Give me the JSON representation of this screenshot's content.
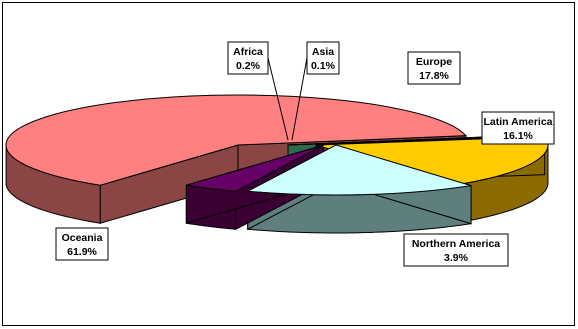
{
  "chart_data": {
    "type": "pie",
    "style": "3d-exploded",
    "title": "",
    "slices": [
      {
        "name": "Oceania",
        "value": 61.9,
        "label": "61.9%",
        "color": "#FF8080",
        "side": "#8B4545"
      },
      {
        "name": "Africa",
        "value": 0.2,
        "label": "0.2%",
        "color": "#3366CC",
        "side": "#1F3D7A"
      },
      {
        "name": "Asia",
        "value": 0.1,
        "label": "0.1%",
        "color": "#66CC99",
        "side": "#2E6B4D"
      },
      {
        "name": "Europe",
        "value": 17.8,
        "label": "17.8%",
        "color": "#FFCC00",
        "side": "#8B6B00"
      },
      {
        "name": "Latin America",
        "value": 16.1,
        "label": "16.1%",
        "color": "#CCFFFF",
        "side": "#5F7F7F"
      },
      {
        "name": "Northern America",
        "value": 3.9,
        "label": "3.9%",
        "color": "#660066",
        "side": "#3A0033"
      }
    ],
    "legend": "none",
    "grid": false
  }
}
